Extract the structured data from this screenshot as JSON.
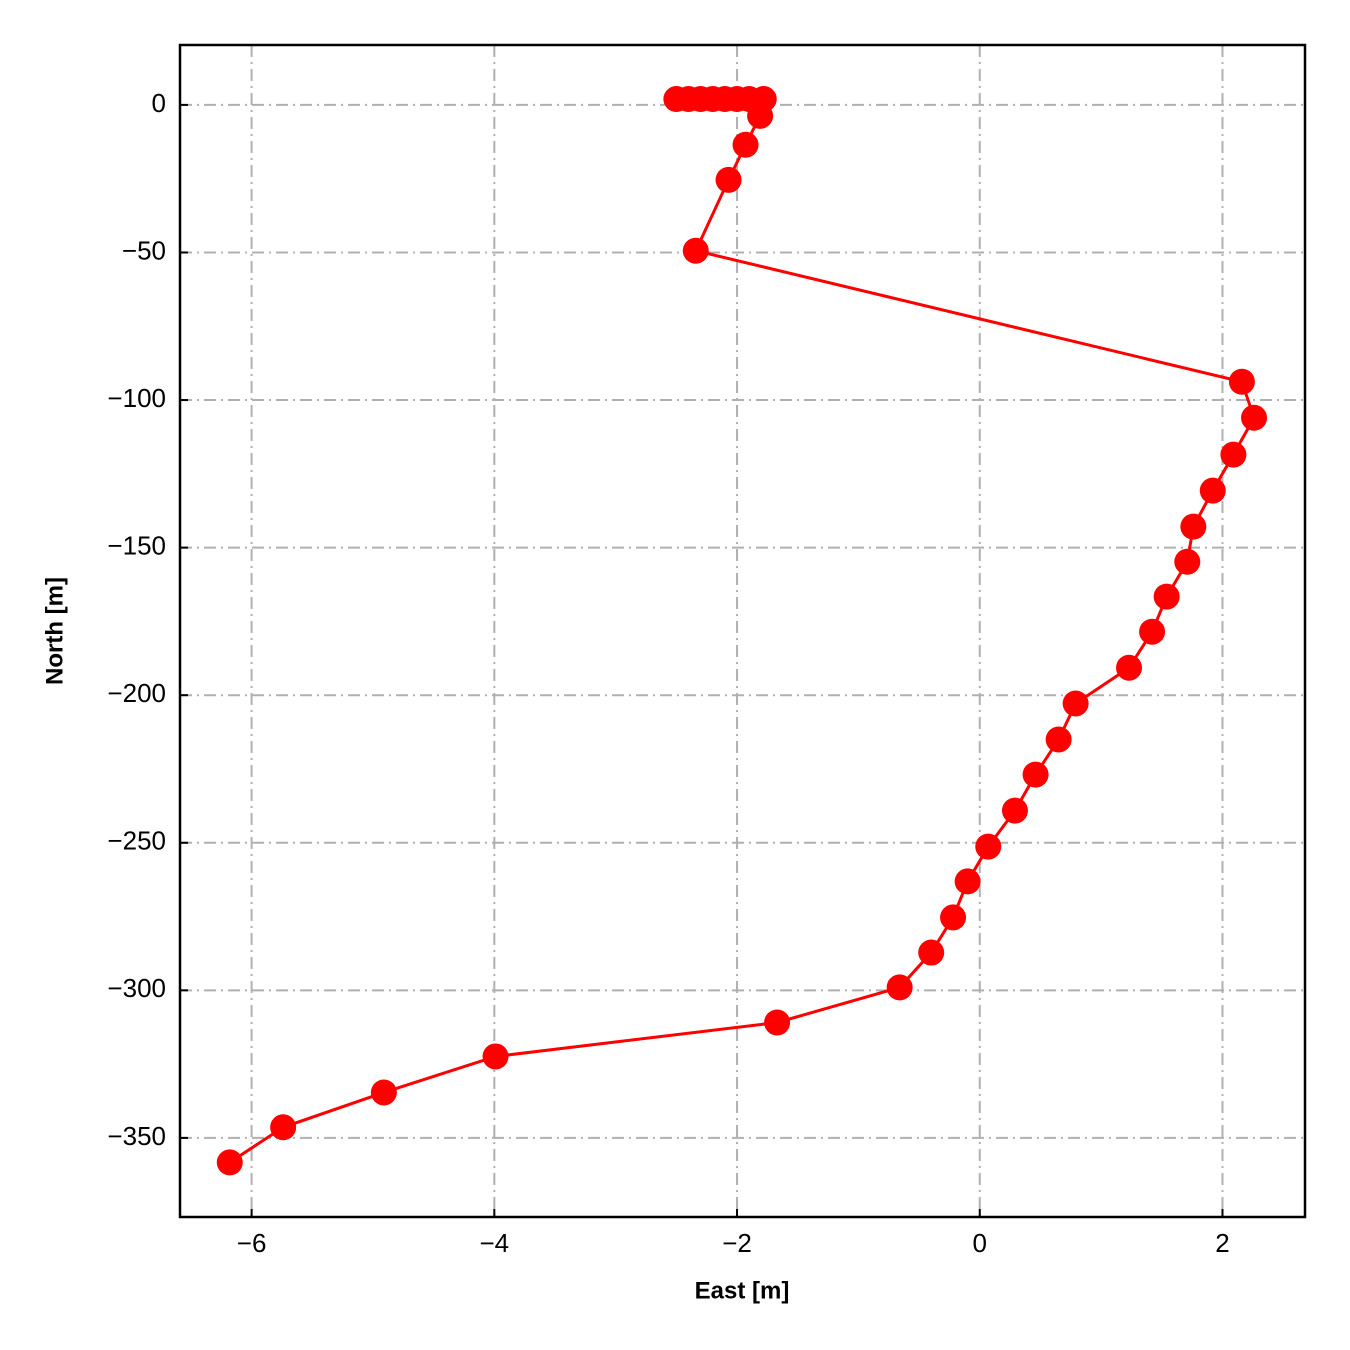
{
  "chart_data": {
    "type": "line",
    "x_label": "East [m]",
    "y_label": "North [m]",
    "series": [
      {
        "color": "#ff0000",
        "x": [
          -2.5,
          -2.4,
          -2.3,
          -2.2,
          -2.1,
          -2.0,
          -1.9,
          -1.78,
          -1.81,
          -1.93,
          -2.07,
          -2.34,
          2.16,
          2.26,
          2.09,
          1.92,
          1.76,
          1.71,
          1.54,
          1.42,
          1.23,
          0.79,
          0.65,
          0.46,
          0.29,
          0.07,
          -0.1,
          -0.22,
          -0.4,
          -0.66,
          -1.67,
          -3.99,
          -4.91,
          -5.74,
          -6.18
        ],
        "values": [
          2,
          2,
          2,
          2,
          2,
          2,
          2,
          2,
          -3.7,
          -13.5,
          -25.4,
          -49.4,
          -93.8,
          -106,
          -118.5,
          -130.7,
          -142.9,
          -154.8,
          -166.6,
          -178.5,
          -190.7,
          -202.8,
          -215,
          -226.9,
          -239.1,
          -251.3,
          -263.1,
          -275.3,
          -287.2,
          -299,
          -310.9,
          -322.4,
          -334.6,
          -346.4,
          -358.3
        ]
      }
    ],
    "xlim": [
      -6.59,
      2.68
    ],
    "xticks": [
      {
        "value": -6,
        "label": "−6"
      },
      {
        "value": -4,
        "label": "−4"
      },
      {
        "value": -2,
        "label": "−2"
      },
      0,
      2
    ],
    "ylim": [
      -376.8,
      20.3
    ],
    "yticks": [
      0,
      {
        "value": -50,
        "label": "−50"
      },
      {
        "value": -100,
        "label": "−100"
      },
      {
        "value": -150,
        "label": "−150"
      },
      {
        "value": -200,
        "label": "−200"
      },
      {
        "value": -250,
        "label": "−250"
      },
      {
        "value": -300,
        "label": "−300"
      },
      {
        "value": -350,
        "label": "−350"
      }
    ],
    "grid": true
  }
}
